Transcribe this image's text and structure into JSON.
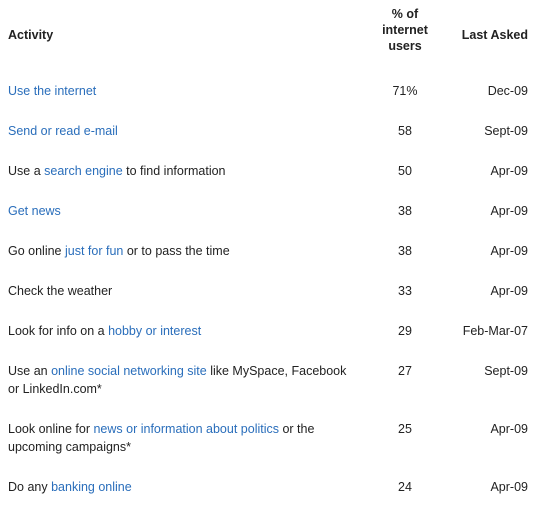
{
  "header": {
    "activity": "Activity",
    "percent_line1": "% of",
    "percent_line2": "internet",
    "percent_line3": "users",
    "last_asked": "Last Asked"
  },
  "rows": [
    {
      "pre": "",
      "link": "Use the internet",
      "post": "",
      "percent": "71%",
      "last_asked": "Dec-09"
    },
    {
      "pre": "",
      "link": "Send or read e-mail",
      "post": "",
      "percent": "58",
      "last_asked": "Sept-09"
    },
    {
      "pre": "Use a ",
      "link": "search engine",
      "post": " to find information",
      "percent": "50",
      "last_asked": "Apr-09"
    },
    {
      "pre": "",
      "link": "Get news",
      "post": "",
      "percent": "38",
      "last_asked": "Apr-09"
    },
    {
      "pre": "Go online ",
      "link": "just for fun",
      "post": " or to pass the time",
      "percent": "38",
      "last_asked": "Apr-09"
    },
    {
      "pre": "Check the weather",
      "link": "",
      "post": "",
      "percent": "33",
      "last_asked": "Apr-09"
    },
    {
      "pre": "Look for info on a ",
      "link": "hobby or interest",
      "post": "",
      "percent": "29",
      "last_asked": "Feb-Mar-07"
    },
    {
      "pre": "Use an ",
      "link": "online social networking site",
      "post": " like MySpace, Facebook or LinkedIn.com*",
      "percent": "27",
      "last_asked": "Sept-09"
    },
    {
      "pre": "Look online for ",
      "link": "news or information about politics",
      "post": " or the upcoming campaigns*",
      "percent": "25",
      "last_asked": "Apr-09"
    },
    {
      "pre": "Do any ",
      "link": "banking online",
      "post": "",
      "percent": "24",
      "last_asked": "Apr-09"
    }
  ]
}
